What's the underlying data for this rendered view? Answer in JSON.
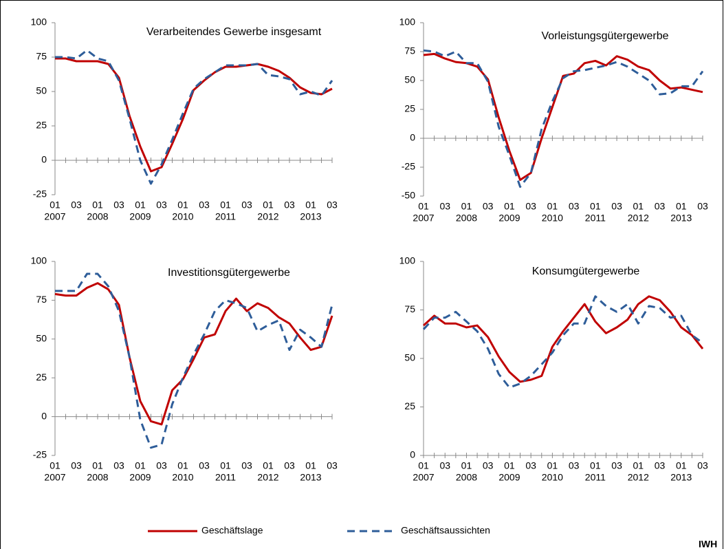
{
  "chart_data": [
    {
      "type": "line",
      "title": "Verarbeitendes Gewerbe insgesamt",
      "categories": [
        "01",
        null,
        "03",
        null,
        "01",
        null,
        "03",
        null,
        "01",
        null,
        "03",
        null,
        "01",
        null,
        "03",
        null,
        "01",
        null,
        "03",
        null,
        "01",
        null,
        "03",
        null,
        "01",
        null,
        "03"
      ],
      "years": [
        "2007",
        "2008",
        "2009",
        "2010",
        "2011",
        "2012",
        "2013"
      ],
      "ylim": [
        -25,
        100
      ],
      "yticks": [
        -25,
        0,
        25,
        50,
        75,
        100
      ],
      "series": [
        {
          "name": "Geschäftslage",
          "color": "#c00000",
          "dash": false,
          "values": [
            74,
            74,
            72,
            72,
            72,
            70,
            60,
            32,
            10,
            -8,
            -5,
            12,
            30,
            51,
            58,
            64,
            68,
            68,
            69,
            70,
            68,
            65,
            60,
            53,
            49,
            48,
            52
          ]
        },
        {
          "name": "Geschäftsaussichten",
          "color": "#2e5d99",
          "dash": true,
          "values": [
            75,
            75,
            74,
            80,
            74,
            72,
            58,
            30,
            0,
            -17,
            -3,
            15,
            34,
            52,
            59,
            64,
            69,
            69,
            69,
            70,
            62,
            61,
            59,
            48,
            50,
            47,
            58
          ]
        }
      ]
    },
    {
      "type": "line",
      "title": "Vorleistungsgütergewerbe",
      "categories": [
        "01",
        null,
        "03",
        null,
        "01",
        null,
        "03",
        null,
        "01",
        null,
        "03",
        null,
        "01",
        null,
        "03",
        null,
        "01",
        null,
        "03",
        null,
        "01",
        null,
        "03",
        null,
        "01",
        null,
        "03"
      ],
      "years": [
        "2007",
        "2008",
        "2009",
        "2010",
        "2011",
        "2012",
        "2013"
      ],
      "ylim": [
        -50,
        100
      ],
      "yticks": [
        -50,
        -25,
        0,
        25,
        50,
        75,
        100
      ],
      "series": [
        {
          "name": "Geschäftslage",
          "color": "#c00000",
          "dash": false,
          "values": [
            72,
            73,
            69,
            66,
            65,
            62,
            51,
            18,
            -11,
            -36,
            -30,
            0,
            27,
            54,
            56,
            65,
            67,
            63,
            71,
            68,
            62,
            59,
            50,
            43,
            44,
            42,
            40
          ]
        },
        {
          "name": "Geschäftsaussichten",
          "color": "#2e5d99",
          "dash": true,
          "values": [
            76,
            75,
            71,
            75,
            65,
            65,
            49,
            10,
            -15,
            -42,
            -30,
            8,
            32,
            52,
            58,
            59,
            61,
            63,
            66,
            62,
            56,
            50,
            38,
            39,
            45,
            45,
            58
          ]
        }
      ]
    },
    {
      "type": "line",
      "title": "Investitionsgütergewerbe",
      "categories": [
        "01",
        null,
        "03",
        null,
        "01",
        null,
        "03",
        null,
        "01",
        null,
        "03",
        null,
        "01",
        null,
        "03",
        null,
        "01",
        null,
        "03",
        null,
        "01",
        null,
        "03",
        null,
        "01",
        null,
        "03"
      ],
      "years": [
        "2007",
        "2008",
        "2009",
        "2010",
        "2011",
        "2012",
        "2013"
      ],
      "ylim": [
        -25,
        100
      ],
      "yticks": [
        -25,
        0,
        25,
        50,
        75,
        100
      ],
      "series": [
        {
          "name": "Geschäftslage",
          "color": "#c00000",
          "dash": false,
          "values": [
            79,
            78,
            78,
            83,
            86,
            82,
            72,
            38,
            10,
            -3,
            -5,
            17,
            24,
            37,
            51,
            53,
            68,
            76,
            68,
            73,
            70,
            64,
            60,
            51,
            43,
            45,
            65
          ]
        },
        {
          "name": "Geschäftsaussichten",
          "color": "#2e5d99",
          "dash": true,
          "values": [
            81,
            81,
            81,
            92,
            92,
            84,
            68,
            38,
            -2,
            -20,
            -18,
            8,
            25,
            40,
            53,
            68,
            75,
            73,
            70,
            55,
            59,
            62,
            43,
            56,
            51,
            45,
            72
          ]
        }
      ]
    },
    {
      "type": "line",
      "title": "Konsumgütergewerbe",
      "categories": [
        "01",
        null,
        "03",
        null,
        "01",
        null,
        "03",
        null,
        "01",
        null,
        "03",
        null,
        "01",
        null,
        "03",
        null,
        "01",
        null,
        "03",
        null,
        "01",
        null,
        "03",
        null,
        "01",
        null,
        "03"
      ],
      "years": [
        "2007",
        "2008",
        "2009",
        "2010",
        "2011",
        "2012",
        "2013"
      ],
      "ylim": [
        0,
        100
      ],
      "yticks": [
        0,
        25,
        50,
        75,
        100
      ],
      "series": [
        {
          "name": "Geschäftslage",
          "color": "#c00000",
          "dash": false,
          "values": [
            67,
            72,
            68,
            68,
            66,
            67,
            61,
            51,
            43,
            38,
            39,
            41,
            56,
            64,
            71,
            78,
            69,
            63,
            66,
            70,
            78,
            82,
            80,
            74,
            66,
            62,
            55
          ]
        },
        {
          "name": "Geschäftsaussichten",
          "color": "#2e5d99",
          "dash": true,
          "values": [
            65,
            71,
            71,
            74,
            69,
            64,
            55,
            42,
            35,
            37,
            41,
            47,
            53,
            62,
            68,
            68,
            82,
            77,
            74,
            78,
            68,
            77,
            76,
            71,
            72,
            62,
            58
          ]
        }
      ]
    }
  ],
  "credit": "IWH"
}
